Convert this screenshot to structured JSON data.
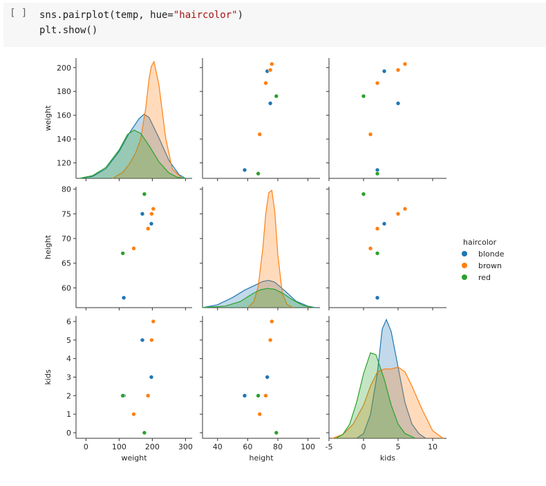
{
  "cell": {
    "prompt": "[ ]",
    "line1_prefix": "sns.pairplot(temp, hue=",
    "line1_string": "\"haircolor\"",
    "line1_suffix": ")",
    "line2": "plt.show()"
  },
  "colors": {
    "blonde": "#1f77b4",
    "brown": "#ff7f0e",
    "red": "#2ca02c"
  },
  "chart_data": {
    "type": "scatter",
    "kind": "pairplot",
    "variables": [
      "weight",
      "height",
      "kids"
    ],
    "hue": "haircolor",
    "legend": {
      "title": "haircolor",
      "entries": [
        "blonde",
        "brown",
        "red"
      ],
      "placement": "right"
    },
    "axes": {
      "weight": {
        "label": "weight",
        "range": [
          -30,
          320
        ],
        "ticks": [
          0,
          100,
          200,
          300
        ],
        "ylim": [
          107,
          208
        ],
        "yticks": [
          120,
          140,
          160,
          180,
          200
        ]
      },
      "height": {
        "label": "height",
        "range": [
          30,
          108
        ],
        "ticks": [
          40,
          60,
          80,
          100
        ],
        "ylim": [
          56,
          80.5
        ],
        "yticks": [
          60,
          65,
          70,
          75,
          80
        ]
      },
      "kids": {
        "label": "kids",
        "range": [
          -5,
          12
        ],
        "ticks": [
          -5,
          0,
          5,
          10
        ],
        "ylim": [
          -0.3,
          6.3
        ],
        "yticks": [
          0,
          1,
          2,
          3,
          4,
          5,
          6
        ]
      }
    },
    "series": [
      {
        "name": "blonde",
        "points": [
          {
            "weight": 197,
            "height": 73,
            "kids": 3
          },
          {
            "weight": 170,
            "height": 75,
            "kids": 5
          },
          {
            "weight": 114,
            "height": 58,
            "kids": 2
          }
        ]
      },
      {
        "name": "brown",
        "points": [
          {
            "weight": 203,
            "height": 76,
            "kids": 6
          },
          {
            "weight": 198,
            "height": 75,
            "kids": 5
          },
          {
            "weight": 187,
            "height": 72,
            "kids": 2
          },
          {
            "weight": 144,
            "height": 68,
            "kids": 1
          }
        ]
      },
      {
        "name": "red",
        "points": [
          {
            "weight": 176,
            "height": 79,
            "kids": 0
          },
          {
            "weight": 111,
            "height": 67,
            "kids": 2
          }
        ]
      }
    ],
    "kde": [
      {
        "name": "blonde",
        "variable": "weight",
        "x": [
          -20,
          20,
          60,
          100,
          130,
          160,
          175,
          190,
          220,
          250,
          280,
          300
        ],
        "density": [
          0,
          0.03,
          0.15,
          0.42,
          0.7,
          0.93,
          1.0,
          0.95,
          0.63,
          0.28,
          0.06,
          0
        ]
      },
      {
        "name": "brown",
        "variable": "weight",
        "x": [
          80,
          110,
          130,
          150,
          165,
          180,
          190,
          197,
          205,
          220,
          240,
          260,
          290
        ],
        "density": [
          0,
          0.05,
          0.12,
          0.22,
          0.34,
          0.6,
          0.85,
          0.96,
          1.0,
          0.8,
          0.35,
          0.08,
          0
        ]
      },
      {
        "name": "red",
        "variable": "weight",
        "x": [
          -20,
          20,
          60,
          100,
          125,
          145,
          165,
          190,
          220,
          250,
          275,
          300
        ],
        "density": [
          0,
          0.05,
          0.2,
          0.52,
          0.8,
          0.88,
          0.82,
          0.6,
          0.3,
          0.1,
          0.02,
          0
        ]
      },
      {
        "name": "blonde",
        "variable": "height",
        "x": [
          30,
          40,
          50,
          58,
          65,
          70,
          74,
          78,
          85,
          92,
          100,
          105
        ],
        "density": [
          0,
          0.08,
          0.28,
          0.48,
          0.62,
          0.72,
          0.75,
          0.7,
          0.45,
          0.18,
          0.04,
          0
        ]
      },
      {
        "name": "brown",
        "variable": "height",
        "x": [
          60,
          64,
          67,
          70,
          72,
          74,
          76,
          78,
          80,
          83,
          86,
          90
        ],
        "density": [
          0,
          0.05,
          0.18,
          0.5,
          0.8,
          0.98,
          1.0,
          0.82,
          0.45,
          0.12,
          0.03,
          0
        ]
      },
      {
        "name": "red",
        "variable": "height",
        "x": [
          30,
          45,
          55,
          63,
          68,
          73,
          78,
          83,
          90,
          97,
          104
        ],
        "density": [
          0,
          0.05,
          0.2,
          0.45,
          0.58,
          0.63,
          0.6,
          0.48,
          0.25,
          0.07,
          0
        ]
      },
      {
        "name": "blonde",
        "variable": "kids",
        "x": [
          -1,
          0,
          1,
          2,
          2.7,
          3.3,
          4,
          5,
          6,
          7,
          8,
          9
        ],
        "density": [
          0,
          0.04,
          0.2,
          0.55,
          0.92,
          1.0,
          0.9,
          0.6,
          0.3,
          0.12,
          0.04,
          0
        ]
      },
      {
        "name": "brown",
        "variable": "kids",
        "x": [
          -4.5,
          -3,
          -1.5,
          0,
          1,
          2,
          3,
          4,
          5,
          6,
          7,
          8.5,
          10,
          11.5
        ],
        "density": [
          0,
          0.04,
          0.15,
          0.35,
          0.55,
          0.7,
          0.73,
          0.73,
          0.75,
          0.7,
          0.55,
          0.3,
          0.08,
          0
        ]
      },
      {
        "name": "red",
        "variable": "kids",
        "x": [
          -4,
          -3,
          -2,
          -1,
          0,
          1,
          1.8,
          3,
          4,
          5,
          6,
          7.5
        ],
        "density": [
          0,
          0.04,
          0.15,
          0.38,
          0.68,
          0.9,
          0.88,
          0.62,
          0.35,
          0.15,
          0.05,
          0
        ]
      }
    ]
  }
}
